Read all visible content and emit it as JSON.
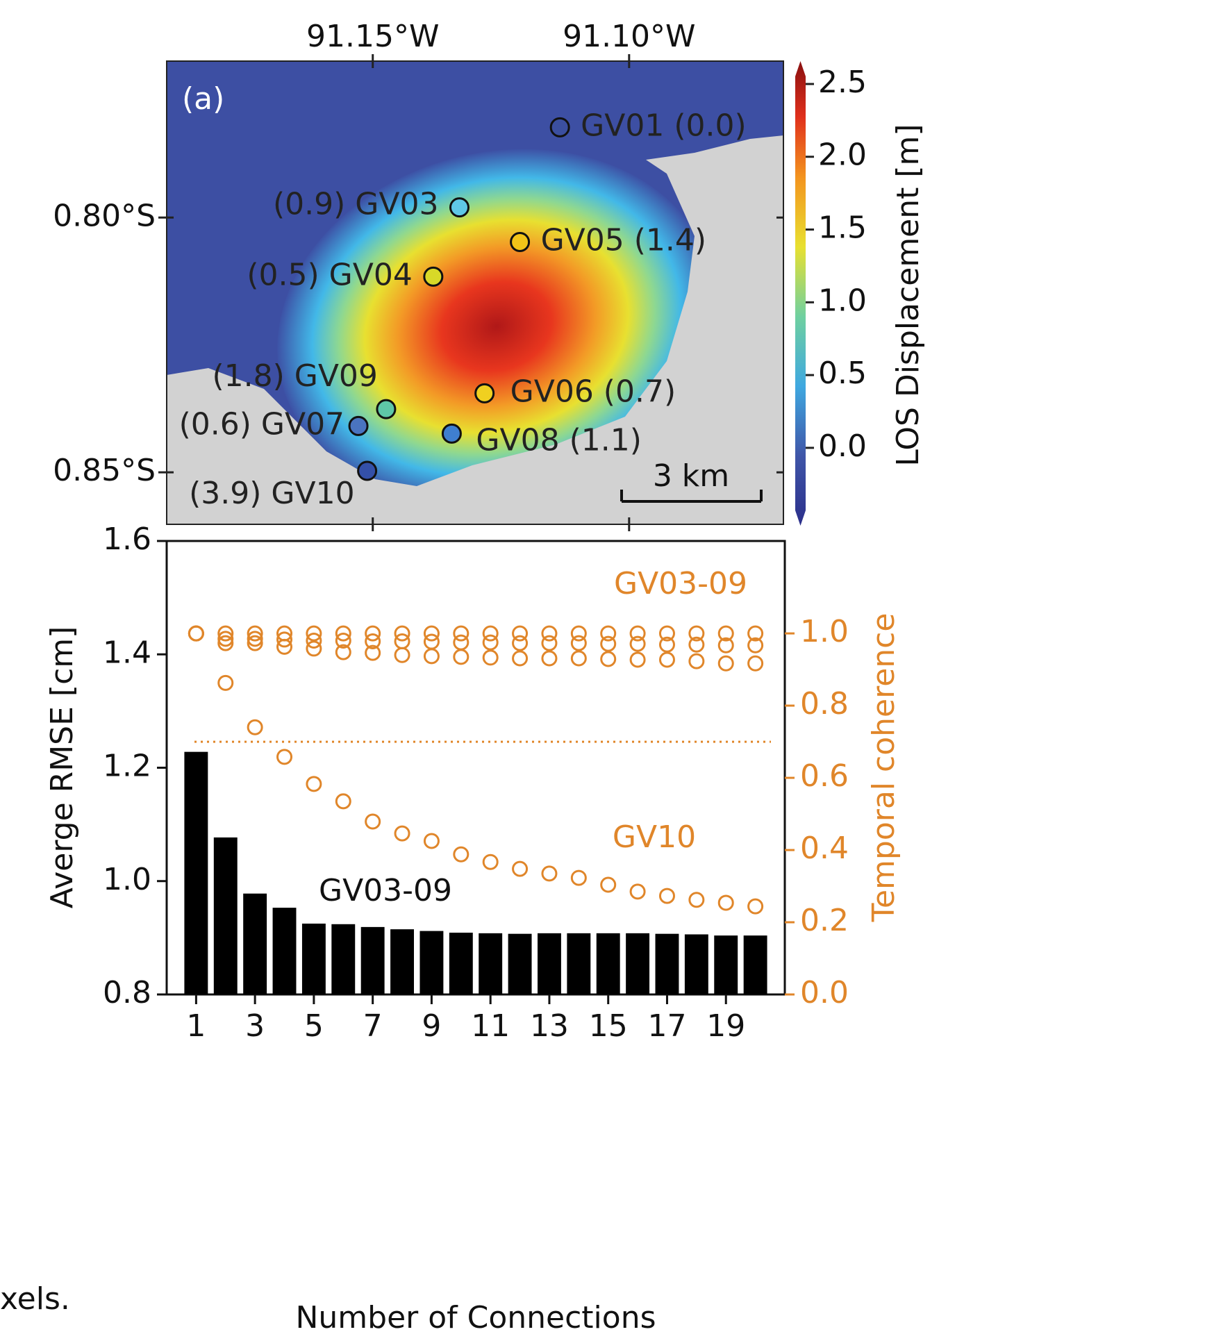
{
  "chart_data": [
    {
      "type": "map",
      "panel_label": "(a)",
      "xlim": [
        -91.1902,
        -91.0699
      ],
      "ylim": [
        -0.8602,
        -0.7693
      ],
      "xticks": [
        {
          "value": -91.15,
          "label": "91.15°W"
        },
        {
          "value": -91.1,
          "label": "91.10°W"
        }
      ],
      "yticks": [
        {
          "value": -0.8,
          "label": "0.80°S"
        },
        {
          "value": -0.85,
          "label": "0.85°S"
        }
      ],
      "colorbar_label": "LOS Displacement [m]",
      "clim": [
        -0.43,
        2.6
      ],
      "cticks": [
        {
          "value": 0.0,
          "label": "0.0"
        },
        0.5,
        {
          "value": 1.0,
          "label": "1.0"
        },
        1.5,
        {
          "value": 2.0,
          "label": "2.0"
        },
        2.5
      ],
      "scale_bar": "3 km",
      "stations": [
        {
          "label": "GV01 (0.0)",
          "lon": -91.1135,
          "lat": -0.7823,
          "color": "#3b4fa0"
        },
        {
          "label": "(0.9) GV03",
          "lon": -91.1331,
          "lat": -0.798,
          "color": "#5fc8e8"
        },
        {
          "label": "GV05 (1.4)",
          "lon": -91.1213,
          "lat": -0.8048,
          "color": "#f2c418"
        },
        {
          "label": "(0.5) GV04",
          "lon": -91.1382,
          "lat": -0.8116,
          "color": "#d8d928"
        },
        {
          "label": "GV06 (0.7)",
          "lon": -91.1282,
          "lat": -0.8345,
          "color": "#f0d020"
        },
        {
          "label": "(1.8) GV09",
          "lon": -91.1474,
          "lat": -0.8376,
          "color": "#5ec7a8"
        },
        {
          "label": "(0.6) GV07",
          "lon": -91.1528,
          "lat": -0.8409,
          "color": "#4a74c0"
        },
        {
          "label": "GV08 (1.1)",
          "lon": -91.1346,
          "lat": -0.8424,
          "color": "#3f7fd0"
        },
        {
          "label": "(3.9) GV10",
          "lon": -91.1511,
          "lat": -0.8497,
          "color": "#3450a8"
        }
      ]
    },
    {
      "type": "bar",
      "x": [
        1,
        2,
        3,
        4,
        5,
        6,
        7,
        8,
        9,
        10,
        11,
        12,
        13,
        14,
        15,
        16,
        17,
        18,
        19,
        20
      ],
      "xlim": [
        0,
        21
      ],
      "xticks": [
        1,
        3,
        5,
        7,
        9,
        11,
        13,
        15,
        17,
        19
      ],
      "values": [
        1.228,
        1.077,
        0.978,
        0.953,
        0.925,
        0.924,
        0.919,
        0.915,
        0.912,
        0.909,
        0.908,
        0.907,
        0.908,
        0.908,
        0.908,
        0.908,
        0.907,
        0.906,
        0.904,
        0.904
      ],
      "color": "#000000",
      "ylim": [
        0.8,
        1.6
      ],
      "yticks": [
        0.8,
        {
          "value": 1.0,
          "label": "1.0"
        },
        1.2,
        1.4,
        1.6
      ],
      "y2lim": [
        0,
        1.256
      ],
      "y2ticks": [
        {
          "value": 0.0,
          "label": "0.0"
        },
        0.2,
        0.4,
        0.6,
        0.8,
        {
          "value": 1.0,
          "label": "1.0"
        }
      ],
      "xlabel": "Number of Connections",
      "ylabel": "Averge RMSE [cm]",
      "y2label": "Temporal coherence",
      "threshold": 0.7,
      "series": [
        {
          "axis": "y2",
          "color": "#e0862a",
          "values": [
            1.0,
            1.0,
            1.0,
            1.0,
            1.0,
            1.0,
            1.0,
            1.0,
            1.0,
            1.0,
            1.0,
            1.0,
            1.0,
            1.0,
            1.0,
            1.0,
            1.0,
            1.0,
            1.0,
            1.0
          ]
        },
        {
          "axis": "y2",
          "color": "#e0862a",
          "values": [
            1.0,
            0.985,
            0.985,
            0.983,
            0.98,
            0.98,
            0.978,
            0.978,
            0.977,
            0.975,
            0.975,
            0.973,
            0.973,
            0.973,
            0.971,
            0.971,
            0.969,
            0.969,
            0.967,
            0.967
          ]
        },
        {
          "axis": "y2",
          "color": "#e0862a",
          "values": [
            1.0,
            0.973,
            0.973,
            0.963,
            0.958,
            0.948,
            0.946,
            0.94,
            0.937,
            0.935,
            0.933,
            0.931,
            0.931,
            0.931,
            0.929,
            0.927,
            0.927,
            0.923,
            0.917,
            0.917
          ]
        },
        {
          "axis": "y2",
          "color": "#e0862a",
          "values": [
            1.0,
            0.863,
            0.74,
            0.658,
            0.583,
            0.535,
            0.479,
            0.446,
            0.425,
            0.388,
            0.367,
            0.348,
            0.335,
            0.323,
            0.304,
            0.285,
            0.273,
            0.262,
            0.254,
            0.244
          ]
        }
      ],
      "annotations": [
        "GV03-09",
        "GV10",
        "GV03-09"
      ],
      "caption_fragment": "xels."
    }
  ]
}
